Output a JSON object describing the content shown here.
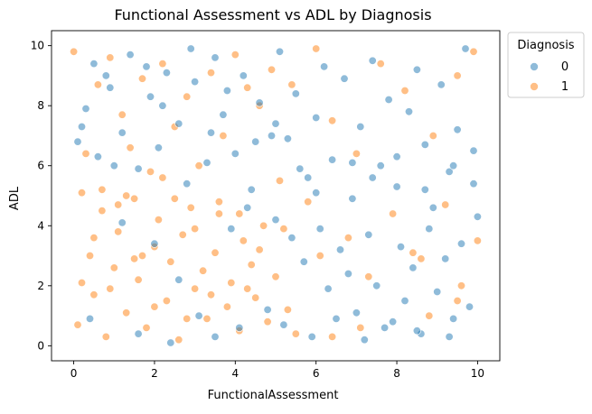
{
  "chart_data": {
    "type": "scatter",
    "title": "Functional Assessment vs ADL by Diagnosis",
    "xlabel": "FunctionalAssessment",
    "ylabel": "ADL",
    "xlim": [
      -0.55,
      10.55
    ],
    "ylim": [
      -0.5,
      10.5
    ],
    "xticks": [
      0,
      2,
      4,
      6,
      8,
      10
    ],
    "yticks": [
      0,
      2,
      4,
      6,
      8,
      10
    ],
    "xtick_labels": [
      "0",
      "2",
      "4",
      "6",
      "8",
      "10"
    ],
    "ytick_labels": [
      "0",
      "2",
      "4",
      "6",
      "8",
      "10"
    ],
    "grid": false,
    "legend": {
      "title": "Diagnosis",
      "placement": "outside upper right",
      "entries": [
        "0",
        "1"
      ]
    },
    "colors": {
      "0": "#1f77b4",
      "1": "#ff7f0e"
    },
    "marker_alpha": 0.5,
    "series": [
      {
        "name": "0",
        "points": [
          [
            0.1,
            6.8
          ],
          [
            0.3,
            7.9
          ],
          [
            0.5,
            9.4
          ],
          [
            0.6,
            6.3
          ],
          [
            0.9,
            8.6
          ],
          [
            1.2,
            7.1
          ],
          [
            1.4,
            9.7
          ],
          [
            1.6,
            5.9
          ],
          [
            1.9,
            8.3
          ],
          [
            2.1,
            6.6
          ],
          [
            2.3,
            9.1
          ],
          [
            2.6,
            7.4
          ],
          [
            2.8,
            5.4
          ],
          [
            3.0,
            8.8
          ],
          [
            3.3,
            6.1
          ],
          [
            3.5,
            9.6
          ],
          [
            3.7,
            7.7
          ],
          [
            4.0,
            6.4
          ],
          [
            4.2,
            9.0
          ],
          [
            4.4,
            5.2
          ],
          [
            4.6,
            8.1
          ],
          [
            4.9,
            7.0
          ],
          [
            5.1,
            9.8
          ],
          [
            5.3,
            6.9
          ],
          [
            5.5,
            8.4
          ],
          [
            5.8,
            5.6
          ],
          [
            6.0,
            7.6
          ],
          [
            6.2,
            9.3
          ],
          [
            6.4,
            6.2
          ],
          [
            6.7,
            8.9
          ],
          [
            6.9,
            4.9
          ],
          [
            7.1,
            7.3
          ],
          [
            7.4,
            9.5
          ],
          [
            7.6,
            6.0
          ],
          [
            7.8,
            8.2
          ],
          [
            8.0,
            5.3
          ],
          [
            8.3,
            7.8
          ],
          [
            8.5,
            9.2
          ],
          [
            8.7,
            6.7
          ],
          [
            8.9,
            4.6
          ],
          [
            9.1,
            8.7
          ],
          [
            9.3,
            5.8
          ],
          [
            9.5,
            7.2
          ],
          [
            9.7,
            9.9
          ],
          [
            9.9,
            6.5
          ],
          [
            5.0,
            4.2
          ],
          [
            5.4,
            3.6
          ],
          [
            5.7,
            2.8
          ],
          [
            6.1,
            3.9
          ],
          [
            6.3,
            1.9
          ],
          [
            6.6,
            3.2
          ],
          [
            6.8,
            2.4
          ],
          [
            7.0,
            1.1
          ],
          [
            7.3,
            3.7
          ],
          [
            7.5,
            2.0
          ],
          [
            7.7,
            0.6
          ],
          [
            8.1,
            3.3
          ],
          [
            8.2,
            1.5
          ],
          [
            8.4,
            2.6
          ],
          [
            8.6,
            0.4
          ],
          [
            8.8,
            3.9
          ],
          [
            9.0,
            1.8
          ],
          [
            9.2,
            2.9
          ],
          [
            9.4,
            0.9
          ],
          [
            9.6,
            3.4
          ],
          [
            9.8,
            1.3
          ],
          [
            10.0,
            4.3
          ],
          [
            4.8,
            1.2
          ],
          [
            5.2,
            0.7
          ],
          [
            5.9,
            0.3
          ],
          [
            6.5,
            0.9
          ],
          [
            7.2,
            0.2
          ],
          [
            7.9,
            0.8
          ],
          [
            8.5,
            0.5
          ],
          [
            9.3,
            0.3
          ],
          [
            1.2,
            4.1
          ],
          [
            2.0,
            3.4
          ],
          [
            2.6,
            2.2
          ],
          [
            3.1,
            1.0
          ],
          [
            3.5,
            0.3
          ],
          [
            4.1,
            0.6
          ],
          [
            0.4,
            0.9
          ],
          [
            1.6,
            0.4
          ],
          [
            2.4,
            0.1
          ],
          [
            6.0,
            5.1
          ],
          [
            6.9,
            6.1
          ],
          [
            7.4,
            5.6
          ],
          [
            8.0,
            6.3
          ],
          [
            8.7,
            5.2
          ],
          [
            9.4,
            6.0
          ],
          [
            9.9,
            5.4
          ],
          [
            5.6,
            5.9
          ],
          [
            4.3,
            4.6
          ],
          [
            3.9,
            3.9
          ],
          [
            0.2,
            7.3
          ],
          [
            0.8,
            9.0
          ],
          [
            1.0,
            6.0
          ],
          [
            1.8,
            9.3
          ],
          [
            2.2,
            8.0
          ],
          [
            2.9,
            9.9
          ],
          [
            3.4,
            7.1
          ],
          [
            3.8,
            8.5
          ],
          [
            4.5,
            6.8
          ],
          [
            5.0,
            7.4
          ]
        ]
      },
      {
        "name": "1",
        "points": [
          [
            0.0,
            9.8
          ],
          [
            0.2,
            5.1
          ],
          [
            0.4,
            3.0
          ],
          [
            0.5,
            1.7
          ],
          [
            0.7,
            4.5
          ],
          [
            0.8,
            0.3
          ],
          [
            1.0,
            2.6
          ],
          [
            1.1,
            3.8
          ],
          [
            1.3,
            1.1
          ],
          [
            1.5,
            4.9
          ],
          [
            1.6,
            2.2
          ],
          [
            1.8,
            0.6
          ],
          [
            2.0,
            3.3
          ],
          [
            2.1,
            4.2
          ],
          [
            2.3,
            1.5
          ],
          [
            2.4,
            2.8
          ],
          [
            2.6,
            0.2
          ],
          [
            2.7,
            3.7
          ],
          [
            2.9,
            4.6
          ],
          [
            3.0,
            1.9
          ],
          [
            3.2,
            2.5
          ],
          [
            3.3,
            0.9
          ],
          [
            3.5,
            3.1
          ],
          [
            3.6,
            4.4
          ],
          [
            3.8,
            1.3
          ],
          [
            3.9,
            2.1
          ],
          [
            4.1,
            0.5
          ],
          [
            4.2,
            3.5
          ],
          [
            4.4,
            2.7
          ],
          [
            4.5,
            1.6
          ],
          [
            4.7,
            4.0
          ],
          [
            4.8,
            0.8
          ],
          [
            5.0,
            2.3
          ],
          [
            5.2,
            3.9
          ],
          [
            5.3,
            1.2
          ],
          [
            5.5,
            0.4
          ],
          [
            0.3,
            6.4
          ],
          [
            0.6,
            8.7
          ],
          [
            0.9,
            9.6
          ],
          [
            1.2,
            7.7
          ],
          [
            1.4,
            6.6
          ],
          [
            1.7,
            8.9
          ],
          [
            1.9,
            5.8
          ],
          [
            2.2,
            9.4
          ],
          [
            2.5,
            7.3
          ],
          [
            2.8,
            8.3
          ],
          [
            3.1,
            6.0
          ],
          [
            3.4,
            9.1
          ],
          [
            3.7,
            7.0
          ],
          [
            4.0,
            9.7
          ],
          [
            4.3,
            8.6
          ],
          [
            4.6,
            8.0
          ],
          [
            4.9,
            9.2
          ],
          [
            5.4,
            8.7
          ],
          [
            6.0,
            9.9
          ],
          [
            6.4,
            7.5
          ],
          [
            7.0,
            6.4
          ],
          [
            7.6,
            9.4
          ],
          [
            8.2,
            8.5
          ],
          [
            8.9,
            7.0
          ],
          [
            9.5,
            9.0
          ],
          [
            9.9,
            9.8
          ],
          [
            6.1,
            3.0
          ],
          [
            6.8,
            3.6
          ],
          [
            7.3,
            2.3
          ],
          [
            7.9,
            4.4
          ],
          [
            8.4,
            3.1
          ],
          [
            8.8,
            1.0
          ],
          [
            9.2,
            4.7
          ],
          [
            9.6,
            2.0
          ],
          [
            10.0,
            3.5
          ],
          [
            6.4,
            0.3
          ],
          [
            7.1,
            0.6
          ],
          [
            8.6,
            2.9
          ],
          [
            9.5,
            1.5
          ],
          [
            0.1,
            0.7
          ],
          [
            0.5,
            3.6
          ],
          [
            1.1,
            4.7
          ],
          [
            1.7,
            3.0
          ],
          [
            2.5,
            4.9
          ],
          [
            3.0,
            3.9
          ],
          [
            3.6,
            4.8
          ],
          [
            4.1,
            4.4
          ],
          [
            4.6,
            3.2
          ],
          [
            5.8,
            4.8
          ],
          [
            5.1,
            5.5
          ],
          [
            0.9,
            1.9
          ],
          [
            1.5,
            2.9
          ],
          [
            2.0,
            1.3
          ],
          [
            2.8,
            0.9
          ],
          [
            3.4,
            1.7
          ],
          [
            4.3,
            1.9
          ],
          [
            0.2,
            2.1
          ],
          [
            0.7,
            5.2
          ],
          [
            1.3,
            5.0
          ],
          [
            2.2,
            5.6
          ]
        ]
      }
    ]
  }
}
